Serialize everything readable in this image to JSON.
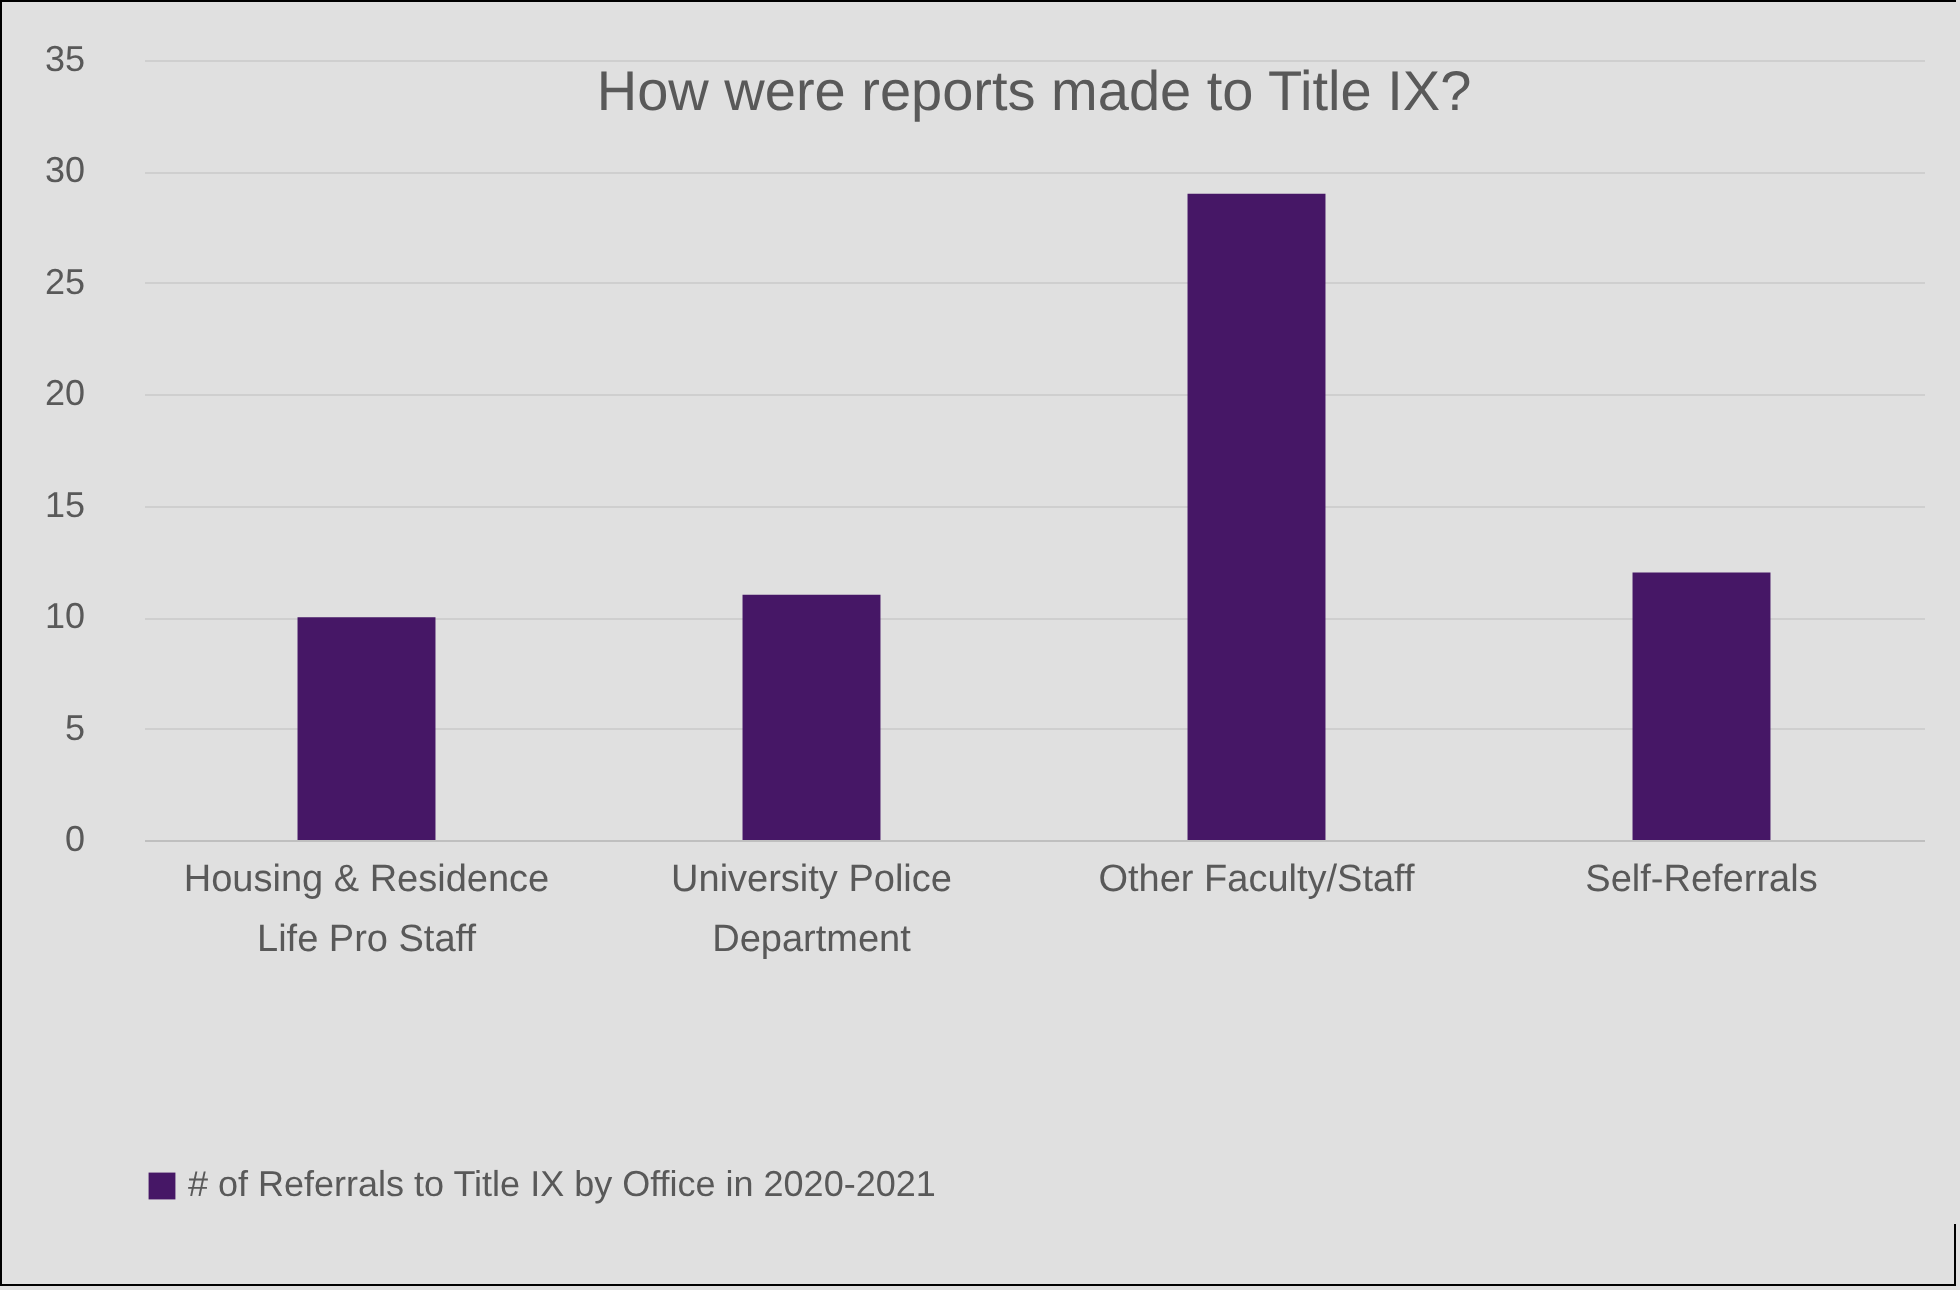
{
  "chart_data": {
    "type": "bar",
    "title": "How were reports made to Title IX?",
    "categories": [
      "Housing & Residence Life Pro Staff",
      "University Police Department",
      "Other Faculty/Staff",
      "Self-Referrals"
    ],
    "series": [
      {
        "name": "# of Referrals to Title IX by Office in 2020-2021",
        "color": "#461766",
        "values": [
          10,
          11,
          29,
          12
        ]
      }
    ],
    "ylim": [
      0,
      35
    ],
    "yticks": [
      0,
      5,
      10,
      15,
      20,
      25,
      30,
      35
    ],
    "grid": "y",
    "legend": "bottom"
  }
}
